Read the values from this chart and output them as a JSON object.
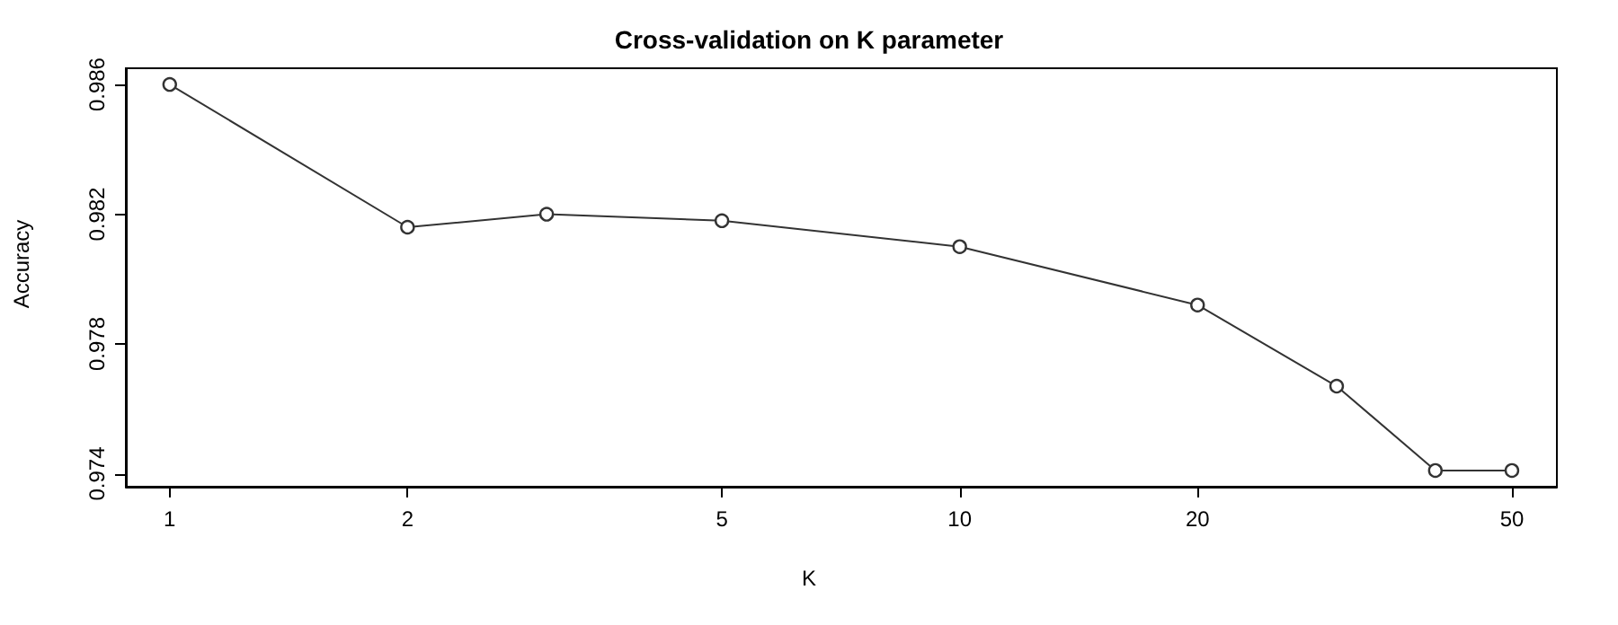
{
  "chart_data": {
    "type": "line",
    "title": "Cross-validation on K parameter",
    "xlabel": "K",
    "ylabel": "Accuracy",
    "x": [
      1,
      2,
      3,
      5,
      10,
      20,
      30,
      40,
      50
    ],
    "series": [
      {
        "color": "#333333",
        "values": [
          0.986,
          0.9816,
          0.982,
          0.9818,
          0.981,
          0.9792,
          0.9767,
          0.9741,
          0.9741
        ]
      }
    ],
    "log": "x",
    "xlim": [
      0.88,
      57
    ],
    "xticks": [
      1,
      2,
      5,
      10,
      20,
      50
    ],
    "ylim": [
      0.9736,
      0.9865
    ],
    "yticks": [
      0.974,
      0.978,
      0.982,
      0.986
    ],
    "grid": false,
    "marker": "circle",
    "line_style": "solid"
  }
}
